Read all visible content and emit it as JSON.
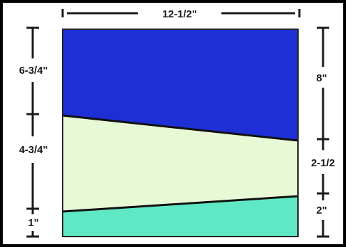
{
  "diagram": {
    "width_label": "12-1/2\"",
    "left_labels": [
      "6-3/4\"",
      "4-3/4\"",
      "1\""
    ],
    "right_labels": [
      "8\"",
      "2-1/2",
      "2\""
    ]
  },
  "colors": {
    "frame_border": "#000000",
    "top_panel": "#1f2fd6",
    "middle_panel": "#e8f9d6",
    "bottom_panel": "#5fe8c4",
    "dimension_lines": "#1a1a1a"
  }
}
